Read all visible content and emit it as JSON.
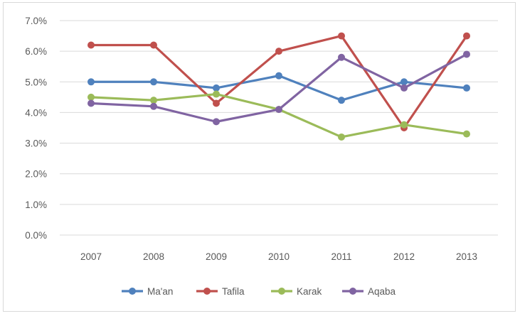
{
  "chart_data": {
    "type": "line",
    "categories": [
      "2007",
      "2008",
      "2009",
      "2010",
      "2011",
      "2012",
      "2013"
    ],
    "ylim": [
      0,
      0.07
    ],
    "yticks": [
      {
        "value": 0.0,
        "label": "0.0%"
      },
      {
        "value": 0.01,
        "label": "1.0%"
      },
      {
        "value": 0.02,
        "label": "2.0%"
      },
      {
        "value": 0.03,
        "label": "3.0%"
      },
      {
        "value": 0.04,
        "label": "4.0%"
      },
      {
        "value": 0.05,
        "label": "5.0%"
      },
      {
        "value": 0.06,
        "label": "6.0%"
      },
      {
        "value": 0.07,
        "label": "7.0%"
      }
    ],
    "grid": true,
    "legend_position": "bottom",
    "series": [
      {
        "name": "Ma'an",
        "color": "#4f81bd",
        "values": [
          0.05,
          0.05,
          0.048,
          0.052,
          0.044,
          0.05,
          0.048
        ]
      },
      {
        "name": "Tafila",
        "color": "#c0504d",
        "values": [
          0.062,
          0.062,
          0.043,
          0.06,
          0.065,
          0.035,
          0.065
        ]
      },
      {
        "name": "Karak",
        "color": "#9bbb59",
        "values": [
          0.045,
          0.044,
          0.046,
          0.041,
          0.032,
          0.036,
          0.033
        ]
      },
      {
        "name": "Aqaba",
        "color": "#8064a2",
        "values": [
          0.043,
          0.042,
          0.037,
          0.041,
          0.058,
          0.048,
          0.059
        ]
      }
    ]
  }
}
